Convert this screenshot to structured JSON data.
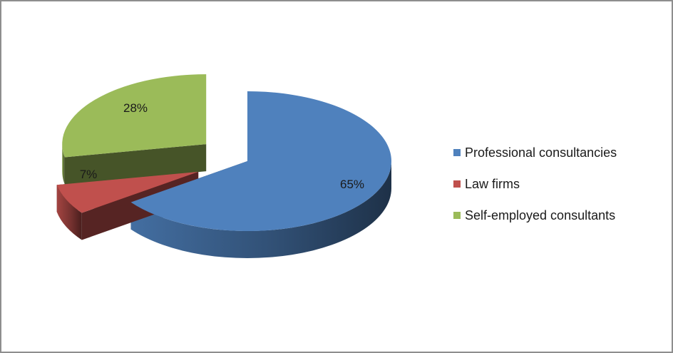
{
  "chart_data": {
    "type": "pie",
    "three_d": true,
    "exploded": true,
    "title": "",
    "categories": [
      "Professional consultancies",
      "Law firms",
      "Self-employed consultants"
    ],
    "values": [
      65,
      7,
      28
    ],
    "value_labels": [
      "65%",
      "7%",
      "28%"
    ],
    "colors": [
      "#4f81bd",
      "#c0504d",
      "#9bbb59"
    ],
    "legend_position": "right"
  }
}
